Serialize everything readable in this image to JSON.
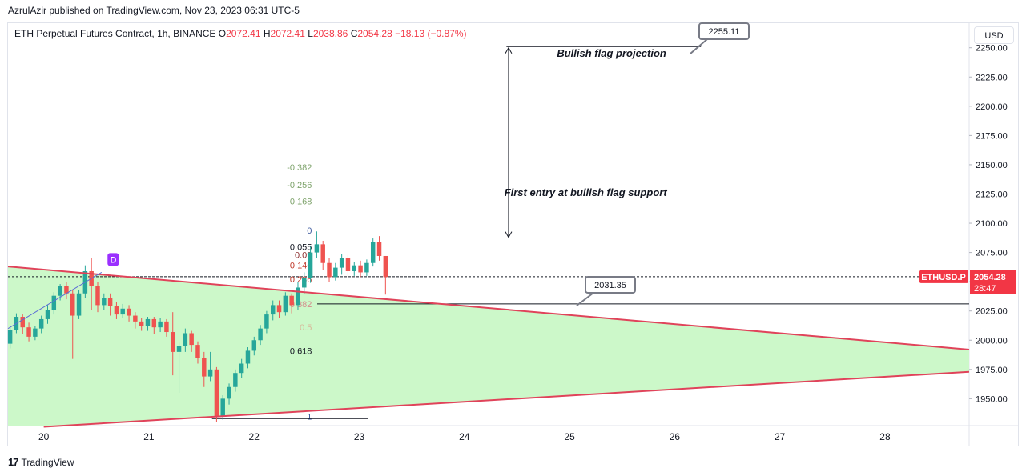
{
  "header": {
    "published": "AzrulAzir published on TradingView.com, Nov 23, 2023 06:31 UTC-5"
  },
  "legend": {
    "symbol": "ETH Perpetual Futures Contract, 1h, BINANCE",
    "o_label": "O",
    "o_value": "2072.41",
    "h_label": "H",
    "h_value": "2072.41",
    "l_label": "L",
    "l_value": "2038.86",
    "c_label": "C",
    "c_value": "2054.28",
    "change": "−18.13 (−0.87%)"
  },
  "currency": "USD",
  "footer": {
    "brand": "TradingView",
    "logo": "17"
  },
  "price_label": {
    "ticker": "ETHUSD.P",
    "price": "2054.28",
    "countdown": "28:47"
  },
  "colors": {
    "up": "#26a69a",
    "down": "#ef5350",
    "wedge_line": "#e0435a",
    "wedge_fill": "#ccf8c9",
    "price_tag": "#f23645"
  },
  "chart_data": {
    "type": "candlestick",
    "x_ticks": [
      "20",
      "21",
      "22",
      "23",
      "24",
      "25",
      "26",
      "27",
      "28"
    ],
    "x_tick_days": [
      20,
      21,
      22,
      23,
      24,
      25,
      26,
      27,
      28
    ],
    "x_range_days": [
      19.66,
      28.8
    ],
    "y_ticks": [
      "1950.00",
      "1975.00",
      "2000.00",
      "2025.00",
      "2050.00",
      "2075.00",
      "2100.00",
      "2125.00",
      "2150.00",
      "2175.00",
      "2200.00",
      "2225.00",
      "2250.00"
    ],
    "y_tick_values": [
      1950,
      1975,
      2000,
      2025,
      2050,
      2075,
      2100,
      2125,
      2150,
      2175,
      2200,
      2225,
      2250
    ],
    "ylim": [
      1927,
      2271
    ],
    "candles": [
      {
        "o": 1997,
        "c": 2009,
        "h": 2012,
        "l": 1993
      },
      {
        "o": 2009,
        "c": 2020,
        "h": 2023,
        "l": 2006
      },
      {
        "o": 2020,
        "c": 2011,
        "h": 2022,
        "l": 2005
      },
      {
        "o": 2011,
        "c": 2003,
        "h": 2015,
        "l": 1999
      },
      {
        "o": 2003,
        "c": 2010,
        "h": 2012,
        "l": 2000
      },
      {
        "o": 2010,
        "c": 2018,
        "h": 2021,
        "l": 2006
      },
      {
        "o": 2018,
        "c": 2026,
        "h": 2030,
        "l": 2014
      },
      {
        "o": 2026,
        "c": 2038,
        "h": 2041,
        "l": 2022
      },
      {
        "o": 2038,
        "c": 2046,
        "h": 2048,
        "l": 2034
      },
      {
        "o": 2046,
        "c": 2040,
        "h": 2050,
        "l": 2035
      },
      {
        "o": 2040,
        "c": 2021,
        "h": 2043,
        "l": 1984
      },
      {
        "o": 2021,
        "c": 2040,
        "h": 2043,
        "l": 2018
      },
      {
        "o": 2040,
        "c": 2059,
        "h": 2064,
        "l": 2036
      },
      {
        "o": 2059,
        "c": 2046,
        "h": 2070,
        "l": 2026
      },
      {
        "o": 2046,
        "c": 2030,
        "h": 2050,
        "l": 2024
      },
      {
        "o": 2030,
        "c": 2036,
        "h": 2040,
        "l": 2026
      },
      {
        "o": 2036,
        "c": 2029,
        "h": 2040,
        "l": 2021
      },
      {
        "o": 2029,
        "c": 2022,
        "h": 2033,
        "l": 2018
      },
      {
        "o": 2022,
        "c": 2027,
        "h": 2031,
        "l": 2019
      },
      {
        "o": 2027,
        "c": 2021,
        "h": 2030,
        "l": 2016
      },
      {
        "o": 2021,
        "c": 2016,
        "h": 2024,
        "l": 2010
      },
      {
        "o": 2016,
        "c": 2012,
        "h": 2019,
        "l": 2008
      },
      {
        "o": 2012,
        "c": 2018,
        "h": 2020,
        "l": 2008
      },
      {
        "o": 2018,
        "c": 2011,
        "h": 2020,
        "l": 2005
      },
      {
        "o": 2011,
        "c": 2016,
        "h": 2019,
        "l": 2007
      },
      {
        "o": 2016,
        "c": 2007,
        "h": 2018,
        "l": 2003
      },
      {
        "o": 2007,
        "c": 1990,
        "h": 2024,
        "l": 1970
      },
      {
        "o": 1990,
        "c": 1995,
        "h": 1998,
        "l": 1955
      },
      {
        "o": 1995,
        "c": 2006,
        "h": 2010,
        "l": 1990
      },
      {
        "o": 2006,
        "c": 1996,
        "h": 2008,
        "l": 1990
      },
      {
        "o": 1996,
        "c": 1985,
        "h": 1999,
        "l": 1980
      },
      {
        "o": 1985,
        "c": 1969,
        "h": 1990,
        "l": 1960
      },
      {
        "o": 1969,
        "c": 1975,
        "h": 1990,
        "l": 1965
      },
      {
        "o": 1975,
        "c": 1935,
        "h": 1977,
        "l": 1930
      },
      {
        "o": 1935,
        "c": 1950,
        "h": 1953,
        "l": 1932
      },
      {
        "o": 1950,
        "c": 1960,
        "h": 1963,
        "l": 1945
      },
      {
        "o": 1960,
        "c": 1972,
        "h": 1975,
        "l": 1956
      },
      {
        "o": 1972,
        "c": 1980,
        "h": 1984,
        "l": 1968
      },
      {
        "o": 1980,
        "c": 1991,
        "h": 1994,
        "l": 1976
      },
      {
        "o": 1991,
        "c": 2000,
        "h": 2003,
        "l": 1987
      },
      {
        "o": 2000,
        "c": 2010,
        "h": 2013,
        "l": 1996
      },
      {
        "o": 2010,
        "c": 2022,
        "h": 2025,
        "l": 2006
      },
      {
        "o": 2022,
        "c": 2030,
        "h": 2034,
        "l": 2017
      },
      {
        "o": 2030,
        "c": 2024,
        "h": 2034,
        "l": 2019
      },
      {
        "o": 2024,
        "c": 2038,
        "h": 2041,
        "l": 2021
      },
      {
        "o": 2038,
        "c": 2030,
        "h": 2040,
        "l": 2023
      },
      {
        "o": 2030,
        "c": 2045,
        "h": 2050,
        "l": 2026
      },
      {
        "o": 2045,
        "c": 2053,
        "h": 2058,
        "l": 2040
      },
      {
        "o": 2053,
        "c": 2075,
        "h": 2080,
        "l": 2049
      },
      {
        "o": 2075,
        "c": 2082,
        "h": 2093,
        "l": 2070
      },
      {
        "o": 2082,
        "c": 2066,
        "h": 2085,
        "l": 2060
      },
      {
        "o": 2066,
        "c": 2054,
        "h": 2070,
        "l": 2050
      },
      {
        "o": 2054,
        "c": 2062,
        "h": 2066,
        "l": 2051
      },
      {
        "o": 2062,
        "c": 2070,
        "h": 2074,
        "l": 2056
      },
      {
        "o": 2070,
        "c": 2059,
        "h": 2073,
        "l": 2054
      },
      {
        "o": 2059,
        "c": 2064,
        "h": 2067,
        "l": 2055
      },
      {
        "o": 2064,
        "c": 2058,
        "h": 2068,
        "l": 2054
      },
      {
        "o": 2058,
        "c": 2066,
        "h": 2069,
        "l": 2055
      },
      {
        "o": 2066,
        "c": 2084,
        "h": 2087,
        "l": 2063
      },
      {
        "o": 2084,
        "c": 2072,
        "h": 2089,
        "l": 2068
      },
      {
        "o": 2072,
        "c": 2054,
        "h": 2072,
        "l": 2039
      }
    ],
    "wedge_upper": [
      [
        19.66,
        2063
      ],
      [
        28.8,
        1992
      ]
    ],
    "wedge_lower": [
      [
        20.0,
        1926
      ],
      [
        28.8,
        1973
      ]
    ],
    "blue_trend": [
      [
        19.66,
        2010
      ],
      [
        20.55,
        2058
      ]
    ],
    "last_price": 2054.28,
    "support_level": 2031,
    "fib_levels": [
      {
        "label": "-0.382",
        "value": 2148
      },
      {
        "label": "-0.256",
        "value": 2133
      },
      {
        "label": "-0.168",
        "value": 2119
      },
      {
        "label": "0",
        "value": 2094
      },
      {
        "label": "0.055",
        "value": 2080
      },
      {
        "label": "0.09",
        "value": 2073
      },
      {
        "label": "0.146",
        "value": 2064
      },
      {
        "label": "0.236",
        "value": 2052
      },
      {
        "label": "0.382",
        "value": 2031
      },
      {
        "label": "0.5",
        "value": 2011
      },
      {
        "label": "0.618",
        "value": 1991
      },
      {
        "label": "1",
        "value": 1935
      }
    ],
    "annotations": {
      "projection_text": "Bullish flag projection",
      "entry_text": "First entry at bullish flag support",
      "callout_top": "2255.11",
      "callout_bottom": "2031.35",
      "d_marker": "D"
    }
  }
}
